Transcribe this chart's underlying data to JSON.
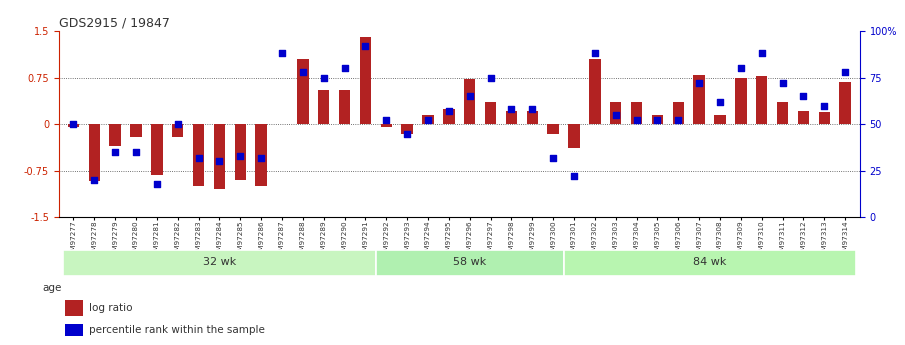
{
  "title": "GDS2915 / 19847",
  "samples": [
    "GSM97277",
    "GSM97278",
    "GSM97279",
    "GSM97280",
    "GSM97281",
    "GSM97282",
    "GSM97283",
    "GSM97284",
    "GSM97285",
    "GSM97286",
    "GSM97287",
    "GSM97288",
    "GSM97289",
    "GSM97290",
    "GSM97291",
    "GSM97292",
    "GSM97293",
    "GSM97294",
    "GSM97295",
    "GSM97296",
    "GSM97297",
    "GSM97298",
    "GSM97299",
    "GSM97300",
    "GSM97301",
    "GSM97302",
    "GSM97303",
    "GSM97304",
    "GSM97305",
    "GSM97306",
    "GSM97307",
    "GSM97308",
    "GSM97309",
    "GSM97310",
    "GSM97311",
    "GSM97312",
    "GSM97313",
    "GSM97314"
  ],
  "log_ratio": [
    -0.05,
    -0.92,
    -0.35,
    -0.2,
    -0.82,
    -0.2,
    -1.0,
    -1.05,
    -0.9,
    -1.0,
    0.0,
    1.05,
    0.55,
    0.55,
    1.4,
    -0.05,
    -0.15,
    0.15,
    0.25,
    0.72,
    0.35,
    0.22,
    0.22,
    -0.15,
    -0.38,
    1.05,
    0.35,
    0.35,
    0.15,
    0.35,
    0.8,
    0.15,
    0.75,
    0.78,
    0.35,
    0.22,
    0.2,
    0.68
  ],
  "percentile": [
    50,
    20,
    35,
    35,
    18,
    50,
    32,
    30,
    33,
    32,
    88,
    78,
    75,
    80,
    92,
    52,
    45,
    52,
    57,
    65,
    75,
    58,
    58,
    32,
    22,
    88,
    55,
    52,
    52,
    52,
    72,
    62,
    80,
    88,
    72,
    65,
    60,
    78
  ],
  "groups": [
    {
      "label": "32 wk",
      "start": 0,
      "end": 15
    },
    {
      "label": "58 wk",
      "start": 15,
      "end": 24
    },
    {
      "label": "84 wk",
      "start": 24,
      "end": 38
    }
  ],
  "ylim": [
    -1.5,
    1.5
  ],
  "yticks_left": [
    -1.5,
    -0.75,
    0,
    0.75,
    1.5
  ],
  "yticks_right": [
    0,
    25,
    50,
    75,
    100
  ],
  "ytick_right_labels": [
    "0",
    "25",
    "50",
    "75",
    "100%"
  ],
  "bar_color": "#B22222",
  "dot_color": "#0000CC",
  "group_colors": [
    "#c8f5c0",
    "#b0f0b0",
    "#b8f5b0"
  ],
  "background_color": "#ffffff"
}
